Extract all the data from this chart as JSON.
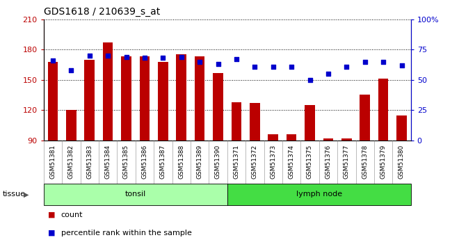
{
  "title": "GDS1618 / 210639_s_at",
  "samples": [
    "GSM51381",
    "GSM51382",
    "GSM51383",
    "GSM51384",
    "GSM51385",
    "GSM51386",
    "GSM51387",
    "GSM51388",
    "GSM51389",
    "GSM51390",
    "GSM51371",
    "GSM51372",
    "GSM51373",
    "GSM51374",
    "GSM51375",
    "GSM51376",
    "GSM51377",
    "GSM51378",
    "GSM51379",
    "GSM51380"
  ],
  "counts": [
    168,
    120,
    170,
    187,
    173,
    173,
    168,
    175,
    173,
    157,
    128,
    127,
    96,
    96,
    125,
    92,
    92,
    135,
    151,
    115
  ],
  "percentile_ranks": [
    66,
    58,
    70,
    70,
    69,
    68,
    68,
    69,
    65,
    63,
    67,
    61,
    61,
    61,
    50,
    55,
    61,
    65,
    65,
    62
  ],
  "tissue_groups": [
    {
      "label": "tonsil",
      "start": 0,
      "end": 9,
      "color": "#AAFFAA"
    },
    {
      "label": "lymph node",
      "start": 10,
      "end": 19,
      "color": "#44DD44"
    }
  ],
  "ylim_left": [
    90,
    210
  ],
  "ylim_right": [
    0,
    100
  ],
  "yticks_left": [
    90,
    120,
    150,
    180,
    210
  ],
  "yticks_right": [
    0,
    25,
    50,
    75,
    100
  ],
  "bar_color": "#BB0000",
  "scatter_color": "#0000CC",
  "tick_bg_color": "#C8C8C8",
  "plot_bg_color": "#FFFFFF",
  "grid_color": "#000000",
  "tissue_label": "tissue",
  "legend_items": [
    {
      "label": "count",
      "color": "#BB0000"
    },
    {
      "label": "percentile rank within the sample",
      "color": "#0000CC"
    }
  ]
}
